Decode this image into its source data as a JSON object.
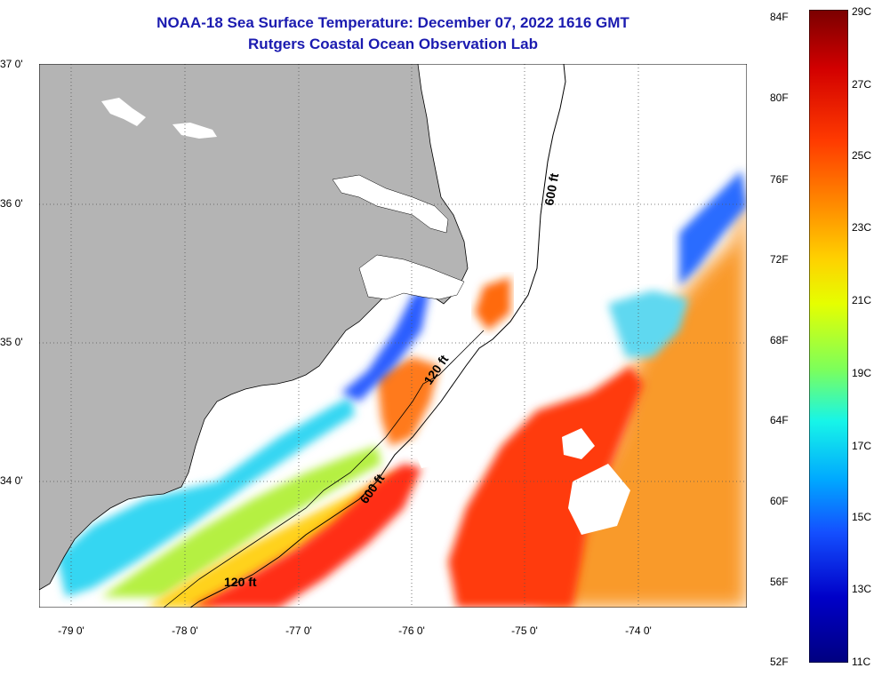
{
  "title": {
    "line1": "NOAA-18 Sea Surface Temperature:  December 07, 2022 1616 GMT",
    "line2": "Rutgers Coastal Ocean Observation Lab"
  },
  "lat_labels": [
    "37 0'",
    "36 0'",
    "35 0'",
    "34 0'"
  ],
  "lon_labels": [
    "-79 0'",
    "-78 0'",
    "-77 0'",
    "-76 0'",
    "-75 0'",
    "-74 0'"
  ],
  "isobath_labels": {
    "shelf_north": "120 ft",
    "shelf_south": "120 ft",
    "slope_north": "600 ft",
    "slope_south": "600 ft"
  },
  "colorbar": {
    "fahrenheit": [
      "84F",
      "80F",
      "76F",
      "72F",
      "68F",
      "64F",
      "60F",
      "56F",
      "52F"
    ],
    "celsius": [
      "29C",
      "27C",
      "25C",
      "23C",
      "21C",
      "19C",
      "17C",
      "15C",
      "13C",
      "11C"
    ],
    "colors": [
      "#7a0000",
      "#d20000",
      "#ff3a00",
      "#ff8c00",
      "#ffd000",
      "#e6ff00",
      "#7dff5a",
      "#17f5e8",
      "#00a8ff",
      "#1450ff",
      "#0000c8",
      "#000080"
    ]
  },
  "colors": {
    "land": "#b4b4b4",
    "title": "#1b1bb0",
    "cloud": "#ffffff"
  }
}
